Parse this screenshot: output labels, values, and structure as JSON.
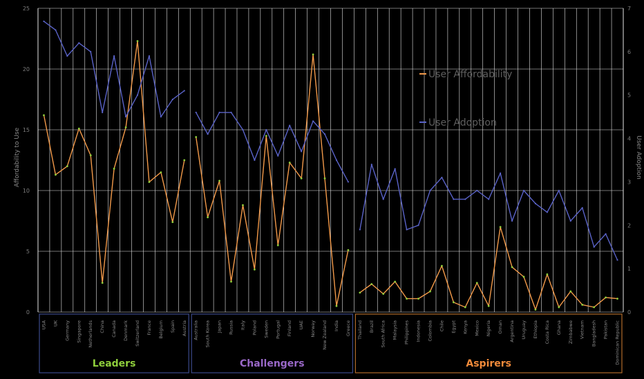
{
  "chart_data": {
    "type": "line",
    "ylabel_left": "Affordability to Use",
    "ylabel_right": "User Adoption",
    "ylim_left": [
      0,
      25
    ],
    "ylim_right": [
      0,
      7
    ],
    "yticks_left": [
      "0",
      "5",
      "10",
      "15",
      "20",
      "25"
    ],
    "yticks_right": [
      "0",
      "1",
      "2",
      "3",
      "4",
      "5",
      "6",
      "7"
    ],
    "grid": true,
    "legend_position": "inside, upper right",
    "colors": {
      "affordability_line": "#f39a4a",
      "affordability_marker": "#8fcf3c",
      "adoption_line": "#5a63c8",
      "grid": "#e6e6e6",
      "leaders": "#8fcf3c",
      "challengers": "#9a68c8",
      "aspirers": "#f08a3a"
    },
    "categories": [
      "USA",
      "UK",
      "Germany",
      "Singapore",
      "Netherlands",
      "China",
      "Canada",
      "Denmark",
      "Switzerland",
      "France",
      "Belgium",
      "Spain",
      "Austria",
      "Australia",
      "South Korea",
      "Japan",
      "Russia",
      "Italy",
      "Poland",
      "Sweden",
      "Portugal",
      "Finland",
      "UAE",
      "Norway",
      "New Zealand",
      "India",
      "Greece",
      "Thailand",
      "Brazil",
      "South Africa",
      "Malaysia",
      "Philippines",
      "Indonesia",
      "Colombia",
      "Chile",
      "Egypt",
      "Kenya",
      "Mexico",
      "Nigeria",
      "Oman",
      "Argentina",
      "Uruguay",
      "Ethiopia",
      "Costa Rica",
      "Ghana",
      "Zimbabwe",
      "Vietnam",
      "Bangladesh",
      "Pakistan",
      "Dominican Republic"
    ],
    "groups": [
      {
        "name": "Leaders",
        "start": 0,
        "end": 12
      },
      {
        "name": "Challengers",
        "start": 13,
        "end": 26
      },
      {
        "name": "Aspirers",
        "start": 27,
        "end": 49
      }
    ],
    "series": [
      {
        "name": "User Affordability",
        "axis": "left",
        "segments": [
          [
            16.2,
            11.3,
            12,
            15.1,
            12.9,
            2.4,
            11.8,
            15.2,
            22.3,
            10.7,
            11.5,
            7.4,
            12.5
          ],
          [
            14.4,
            7.8,
            10.8,
            2.5,
            8.8,
            3.5,
            14.5,
            5.5,
            12.3,
            11,
            21.2,
            11,
            0.5,
            5.1
          ],
          [
            1.6,
            2.3,
            1.5,
            2.5,
            1.1,
            1.1,
            1.7,
            3.8,
            0.8,
            0.4,
            2.4,
            0.5,
            7,
            3.7,
            2.9,
            0.2,
            3.1,
            0.4,
            1.7,
            0.6,
            0.4,
            1.2,
            1.1
          ]
        ]
      },
      {
        "name": "User Adoption",
        "axis": "right",
        "segments": [
          [
            6.7,
            6.5,
            5.9,
            6.2,
            6,
            4.6,
            5.9,
            4.5,
            5,
            5.9,
            4.5,
            4.9,
            5.1
          ],
          [
            4.6,
            4.1,
            4.6,
            4.6,
            4.2,
            3.5,
            4.2,
            3.6,
            4.3,
            3.7,
            4.4,
            4.1,
            3.5,
            3.0
          ],
          [
            1.9,
            3.4,
            2.6,
            3.3,
            1.9,
            2.0,
            2.8,
            3.1,
            2.6,
            2.6,
            2.8,
            2.6,
            3.2,
            2.1,
            2.8,
            2.5,
            2.3,
            2.8,
            2.1,
            2.4,
            1.5,
            1.8,
            1.2
          ]
        ]
      }
    ]
  }
}
